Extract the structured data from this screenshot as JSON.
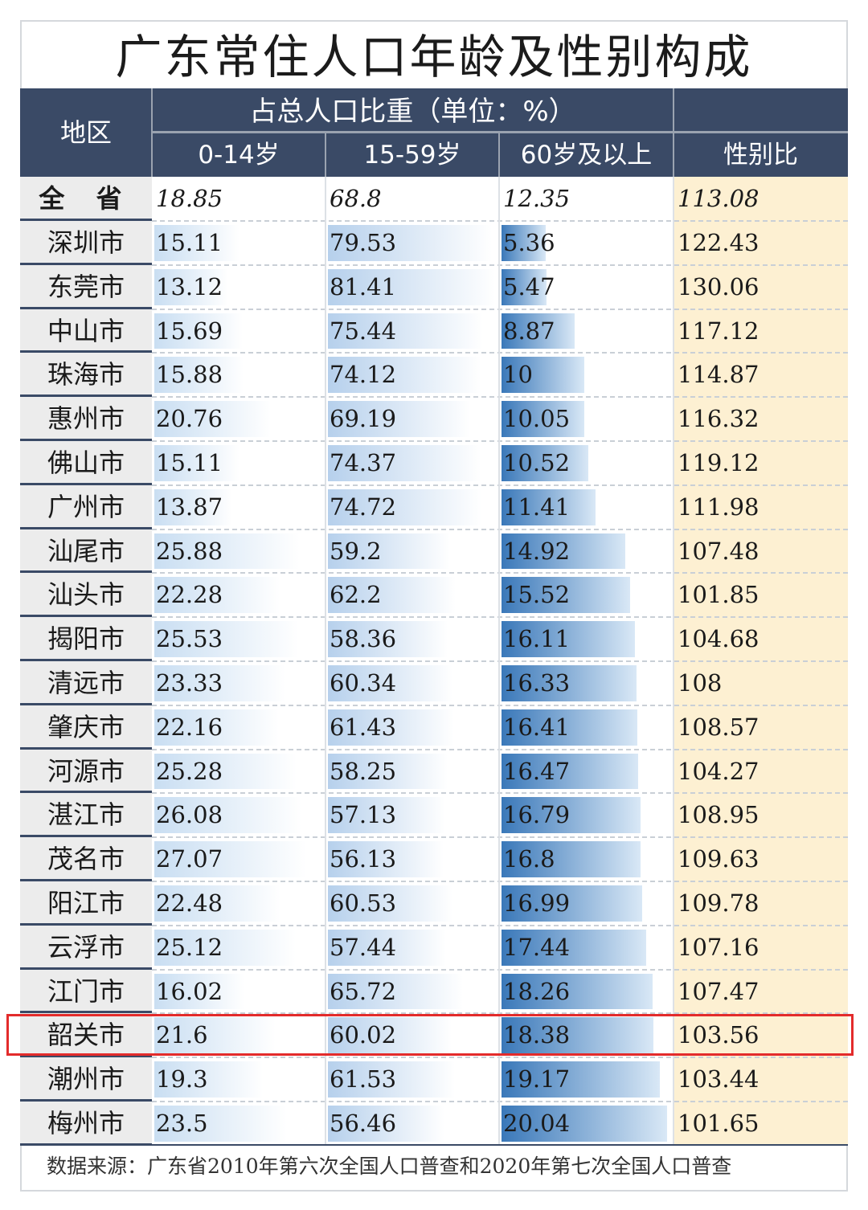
{
  "title": "广东常住人口年龄及性别构成",
  "header": {
    "region": "地区",
    "share_group": "占总人口比重（单位：%）",
    "col_0_14": "0-14岁",
    "col_15_59": "15-59岁",
    "col_60_plus": "60岁及以上",
    "col_sex_ratio": "性别比"
  },
  "total": {
    "label": "全 省",
    "v0_14": "18.85",
    "v15_59": "68.8",
    "v60": "12.35",
    "sex_ratio": "113.08"
  },
  "chart_data": {
    "type": "table",
    "columns": [
      "0-14岁",
      "15-59岁",
      "60岁及以上",
      "性别比"
    ],
    "rows": [
      {
        "region": "深圳市",
        "v0_14": "15.11",
        "v15_59": "79.53",
        "v60": "5.36",
        "sex_ratio": "122.43"
      },
      {
        "region": "东莞市",
        "v0_14": "13.12",
        "v15_59": "81.41",
        "v60": "5.47",
        "sex_ratio": "130.06"
      },
      {
        "region": "中山市",
        "v0_14": "15.69",
        "v15_59": "75.44",
        "v60": "8.87",
        "sex_ratio": "117.12"
      },
      {
        "region": "珠海市",
        "v0_14": "15.88",
        "v15_59": "74.12",
        "v60": "10",
        "sex_ratio": "114.87"
      },
      {
        "region": "惠州市",
        "v0_14": "20.76",
        "v15_59": "69.19",
        "v60": "10.05",
        "sex_ratio": "116.32"
      },
      {
        "region": "佛山市",
        "v0_14": "15.11",
        "v15_59": "74.37",
        "v60": "10.52",
        "sex_ratio": "119.12"
      },
      {
        "region": "广州市",
        "v0_14": "13.87",
        "v15_59": "74.72",
        "v60": "11.41",
        "sex_ratio": "111.98"
      },
      {
        "region": "汕尾市",
        "v0_14": "25.88",
        "v15_59": "59.2",
        "v60": "14.92",
        "sex_ratio": "107.48"
      },
      {
        "region": "汕头市",
        "v0_14": "22.28",
        "v15_59": "62.2",
        "v60": "15.52",
        "sex_ratio": "101.85"
      },
      {
        "region": "揭阳市",
        "v0_14": "25.53",
        "v15_59": "58.36",
        "v60": "16.11",
        "sex_ratio": "104.68"
      },
      {
        "region": "清远市",
        "v0_14": "23.33",
        "v15_59": "60.34",
        "v60": "16.33",
        "sex_ratio": "108"
      },
      {
        "region": "肇庆市",
        "v0_14": "22.16",
        "v15_59": "61.43",
        "v60": "16.41",
        "sex_ratio": "108.57"
      },
      {
        "region": "河源市",
        "v0_14": "25.28",
        "v15_59": "58.25",
        "v60": "16.47",
        "sex_ratio": "104.27"
      },
      {
        "region": "湛江市",
        "v0_14": "26.08",
        "v15_59": "57.13",
        "v60": "16.79",
        "sex_ratio": "108.95"
      },
      {
        "region": "茂名市",
        "v0_14": "27.07",
        "v15_59": "56.13",
        "v60": "16.8",
        "sex_ratio": "109.63"
      },
      {
        "region": "阳江市",
        "v0_14": "22.48",
        "v15_59": "60.53",
        "v60": "16.99",
        "sex_ratio": "109.78"
      },
      {
        "region": "云浮市",
        "v0_14": "25.12",
        "v15_59": "57.44",
        "v60": "17.44",
        "sex_ratio": "107.16"
      },
      {
        "region": "江门市",
        "v0_14": "16.02",
        "v15_59": "65.72",
        "v60": "18.26",
        "sex_ratio": "107.47"
      },
      {
        "region": "韶关市",
        "v0_14": "21.6",
        "v15_59": "60.02",
        "v60": "18.38",
        "sex_ratio": "103.56",
        "highlighted": true
      },
      {
        "region": "潮州市",
        "v0_14": "19.3",
        "v15_59": "61.53",
        "v60": "19.17",
        "sex_ratio": "103.44"
      },
      {
        "region": "梅州市",
        "v0_14": "23.5",
        "v15_59": "56.46",
        "v60": "20.04",
        "sex_ratio": "101.65"
      }
    ]
  },
  "source": "数据来源：广东省2010年第六次全国人口普查和2020年第七次全国人口普查",
  "colors": {
    "header_bg": "#3a4a66",
    "sex_ratio_bg": "#fdf0d2",
    "highlight": "#e32b2b",
    "bar_60_plus": "#3a78b9"
  }
}
